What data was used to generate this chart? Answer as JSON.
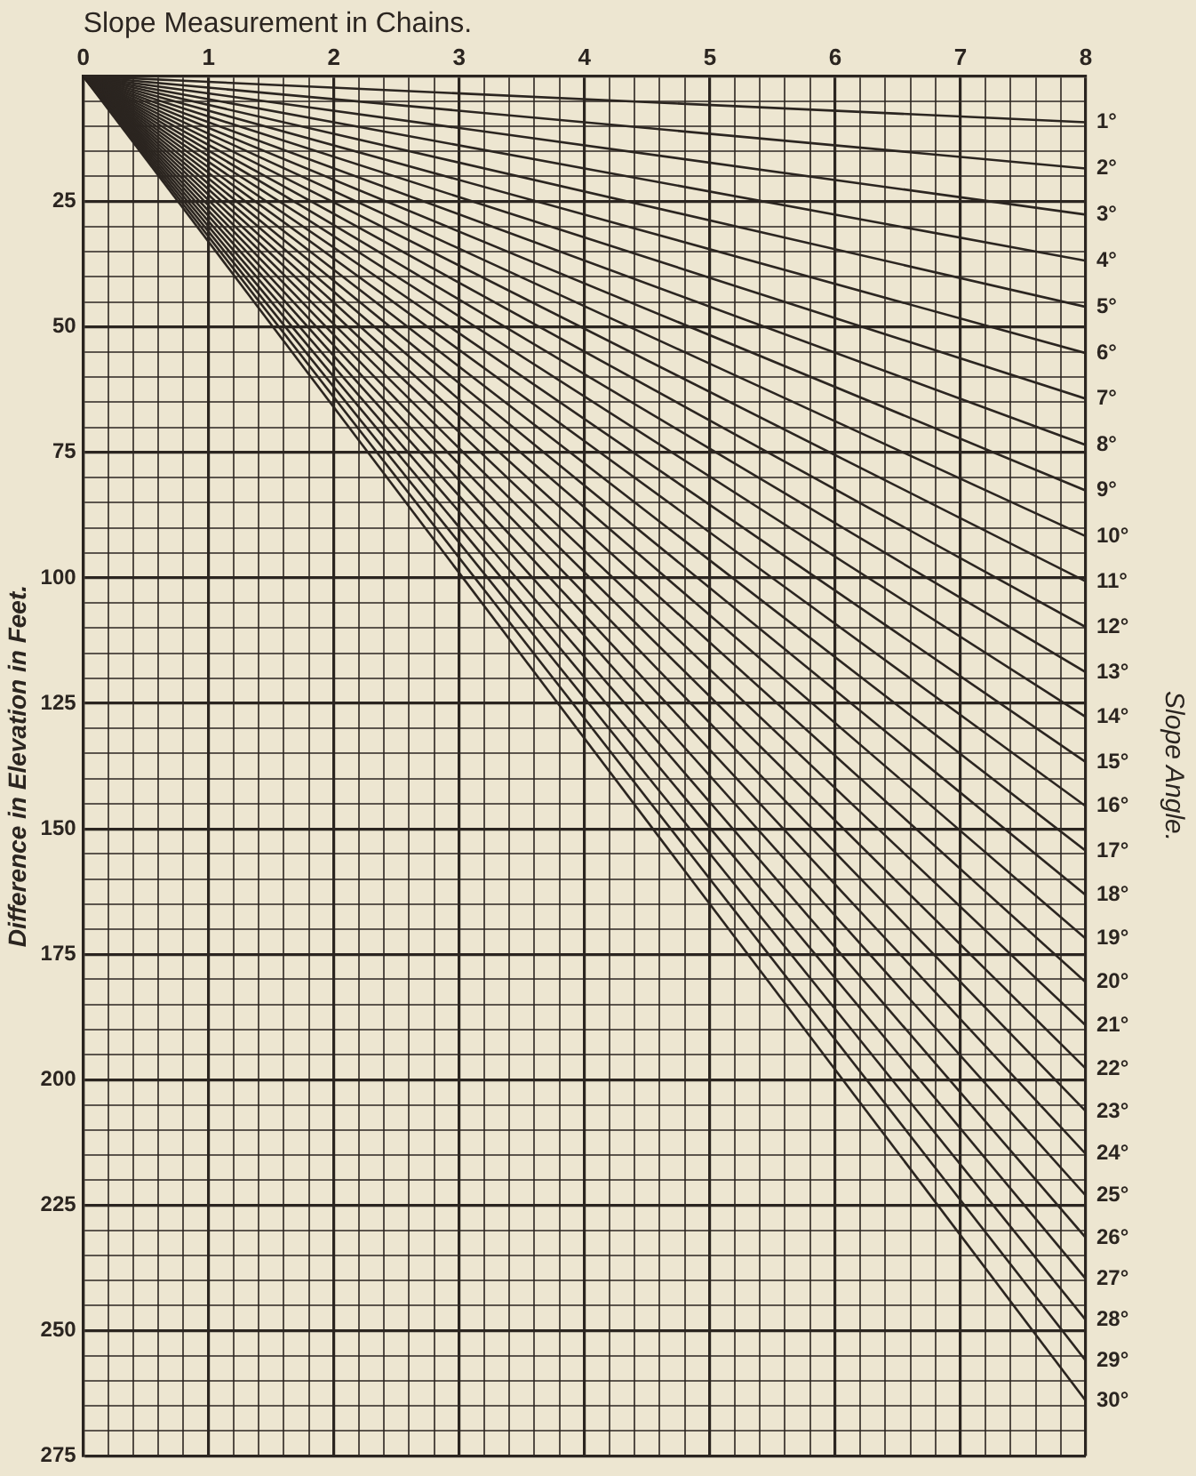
{
  "chart_data": {
    "type": "line",
    "xlabel": "Slope Measurement in Chains.",
    "ylabel": "Difference in Elevation in Feet.",
    "y2label": "Slope Angle.",
    "x": [
      0,
      8
    ],
    "xlim": [
      0,
      8
    ],
    "ylim": [
      275,
      0
    ],
    "xticks": [
      0,
      {
        "value": 0.2,
        "label": null
      },
      {
        "value": 0.4,
        "label": null
      },
      {
        "value": 0.6,
        "label": null
      },
      {
        "value": 0.8,
        "label": null
      },
      1,
      {
        "value": 1.2,
        "label": null
      },
      {
        "value": 1.4,
        "label": null
      },
      {
        "value": 1.6,
        "label": null
      },
      {
        "value": 1.8,
        "label": null
      },
      2,
      {
        "value": 2.2,
        "label": null
      },
      {
        "value": 2.4,
        "label": null
      },
      {
        "value": 2.6,
        "label": null
      },
      {
        "value": 2.8,
        "label": null
      },
      3,
      {
        "value": 3.2,
        "label": null
      },
      {
        "value": 3.4,
        "label": null
      },
      {
        "value": 3.6,
        "label": null
      },
      {
        "value": 3.8,
        "label": null
      },
      4,
      {
        "value": 4.2,
        "label": null
      },
      {
        "value": 4.4,
        "label": null
      },
      {
        "value": 4.6,
        "label": null
      },
      {
        "value": 4.8,
        "label": null
      },
      5,
      {
        "value": 5.2,
        "label": null
      },
      {
        "value": 5.4,
        "label": null
      },
      {
        "value": 5.6,
        "label": null
      },
      {
        "value": 5.8,
        "label": null
      },
      6,
      {
        "value": 6.2,
        "label": null
      },
      {
        "value": 6.4,
        "label": null
      },
      {
        "value": 6.6,
        "label": null
      },
      {
        "value": 6.8,
        "label": null
      },
      7,
      {
        "value": 7.2,
        "label": null
      },
      {
        "value": 7.4,
        "label": null
      },
      {
        "value": 7.6,
        "label": null
      },
      {
        "value": 7.8,
        "label": null
      },
      8
    ],
    "yticks": [
      {
        "value": 0,
        "label": null
      },
      {
        "value": 5,
        "label": null
      },
      {
        "value": 10,
        "label": null
      },
      {
        "value": 15,
        "label": null
      },
      {
        "value": 20,
        "label": null
      },
      25,
      {
        "value": 30,
        "label": null
      },
      {
        "value": 35,
        "label": null
      },
      {
        "value": 40,
        "label": null
      },
      {
        "value": 45,
        "label": null
      },
      50,
      {
        "value": 55,
        "label": null
      },
      {
        "value": 60,
        "label": null
      },
      {
        "value": 65,
        "label": null
      },
      {
        "value": 70,
        "label": null
      },
      75,
      {
        "value": 80,
        "label": null
      },
      {
        "value": 85,
        "label": null
      },
      {
        "value": 90,
        "label": null
      },
      {
        "value": 95,
        "label": null
      },
      100,
      {
        "value": 105,
        "label": null
      },
      {
        "value": 110,
        "label": null
      },
      {
        "value": 115,
        "label": null
      },
      {
        "value": 120,
        "label": null
      },
      125,
      {
        "value": 130,
        "label": null
      },
      {
        "value": 135,
        "label": null
      },
      {
        "value": 140,
        "label": null
      },
      {
        "value": 145,
        "label": null
      },
      150,
      {
        "value": 155,
        "label": null
      },
      {
        "value": 160,
        "label": null
      },
      {
        "value": 165,
        "label": null
      },
      {
        "value": 170,
        "label": null
      },
      175,
      {
        "value": 180,
        "label": null
      },
      {
        "value": 185,
        "label": null
      },
      {
        "value": 190,
        "label": null
      },
      {
        "value": 195,
        "label": null
      },
      200,
      {
        "value": 205,
        "label": null
      },
      {
        "value": 210,
        "label": null
      },
      {
        "value": 215,
        "label": null
      },
      {
        "value": 220,
        "label": null
      },
      225,
      {
        "value": 230,
        "label": null
      },
      {
        "value": 235,
        "label": null
      },
      {
        "value": 240,
        "label": null
      },
      {
        "value": 245,
        "label": null
      },
      250,
      {
        "value": 255,
        "label": null
      },
      {
        "value": 260,
        "label": null
      },
      {
        "value": 265,
        "label": null
      },
      {
        "value": 270,
        "label": null
      },
      275
    ],
    "grid": true,
    "marker": "none",
    "line_style": "solid",
    "series": [
      {
        "name": "1°",
        "color": "#2b2520",
        "values": [
          0,
          9.2
        ]
      },
      {
        "name": "2°",
        "color": "#2b2520",
        "values": [
          0,
          18.4
        ]
      },
      {
        "name": "3°",
        "color": "#2b2520",
        "values": [
          0,
          27.6
        ]
      },
      {
        "name": "4°",
        "color": "#2b2520",
        "values": [
          0,
          36.8
        ]
      },
      {
        "name": "5°",
        "color": "#2b2520",
        "values": [
          0,
          46
        ]
      },
      {
        "name": "6°",
        "color": "#2b2520",
        "values": [
          0,
          55.2
        ]
      },
      {
        "name": "7°",
        "color": "#2b2520",
        "values": [
          0,
          64.3
        ]
      },
      {
        "name": "8°",
        "color": "#2b2520",
        "values": [
          0,
          73.5
        ]
      },
      {
        "name": "9°",
        "color": "#2b2520",
        "values": [
          0,
          82.6
        ]
      },
      {
        "name": "10°",
        "color": "#2b2520",
        "values": [
          0,
          91.7
        ]
      },
      {
        "name": "11°",
        "color": "#2b2520",
        "values": [
          0,
          100.7
        ]
      },
      {
        "name": "12°",
        "color": "#2b2520",
        "values": [
          0,
          109.8
        ]
      },
      {
        "name": "13°",
        "color": "#2b2520",
        "values": [
          0,
          118.8
        ]
      },
      {
        "name": "14°",
        "color": "#2b2520",
        "values": [
          0,
          127.7
        ]
      },
      {
        "name": "15°",
        "color": "#2b2520",
        "values": [
          0,
          136.7
        ]
      },
      {
        "name": "16°",
        "color": "#2b2520",
        "values": [
          0,
          145.5
        ]
      },
      {
        "name": "17°",
        "color": "#2b2520",
        "values": [
          0,
          154.4
        ]
      },
      {
        "name": "18°",
        "color": "#2b2520",
        "values": [
          0,
          163.2
        ]
      },
      {
        "name": "19°",
        "color": "#2b2520",
        "values": [
          0,
          171.9
        ]
      },
      {
        "name": "20°",
        "color": "#2b2520",
        "values": [
          0,
          180.6
        ]
      },
      {
        "name": "21°",
        "color": "#2b2520",
        "values": [
          0,
          189.2
        ]
      },
      {
        "name": "22°",
        "color": "#2b2520",
        "values": [
          0,
          197.8
        ]
      },
      {
        "name": "23°",
        "color": "#2b2520",
        "values": [
          0,
          206.3
        ]
      },
      {
        "name": "24°",
        "color": "#2b2520",
        "values": [
          0,
          214.8
        ]
      },
      {
        "name": "25°",
        "color": "#2b2520",
        "values": [
          0,
          223.1
        ]
      },
      {
        "name": "26°",
        "color": "#2b2520",
        "values": [
          0,
          231.5
        ]
      },
      {
        "name": "27°",
        "color": "#2b2520",
        "values": [
          0,
          239.7
        ]
      },
      {
        "name": "28°",
        "color": "#2b2520",
        "values": [
          0,
          247.9
        ]
      },
      {
        "name": "29°",
        "color": "#2b2520",
        "values": [
          0,
          256
        ]
      },
      {
        "name": "30°",
        "color": "#2b2520",
        "values": [
          0,
          264
        ]
      }
    ]
  }
}
